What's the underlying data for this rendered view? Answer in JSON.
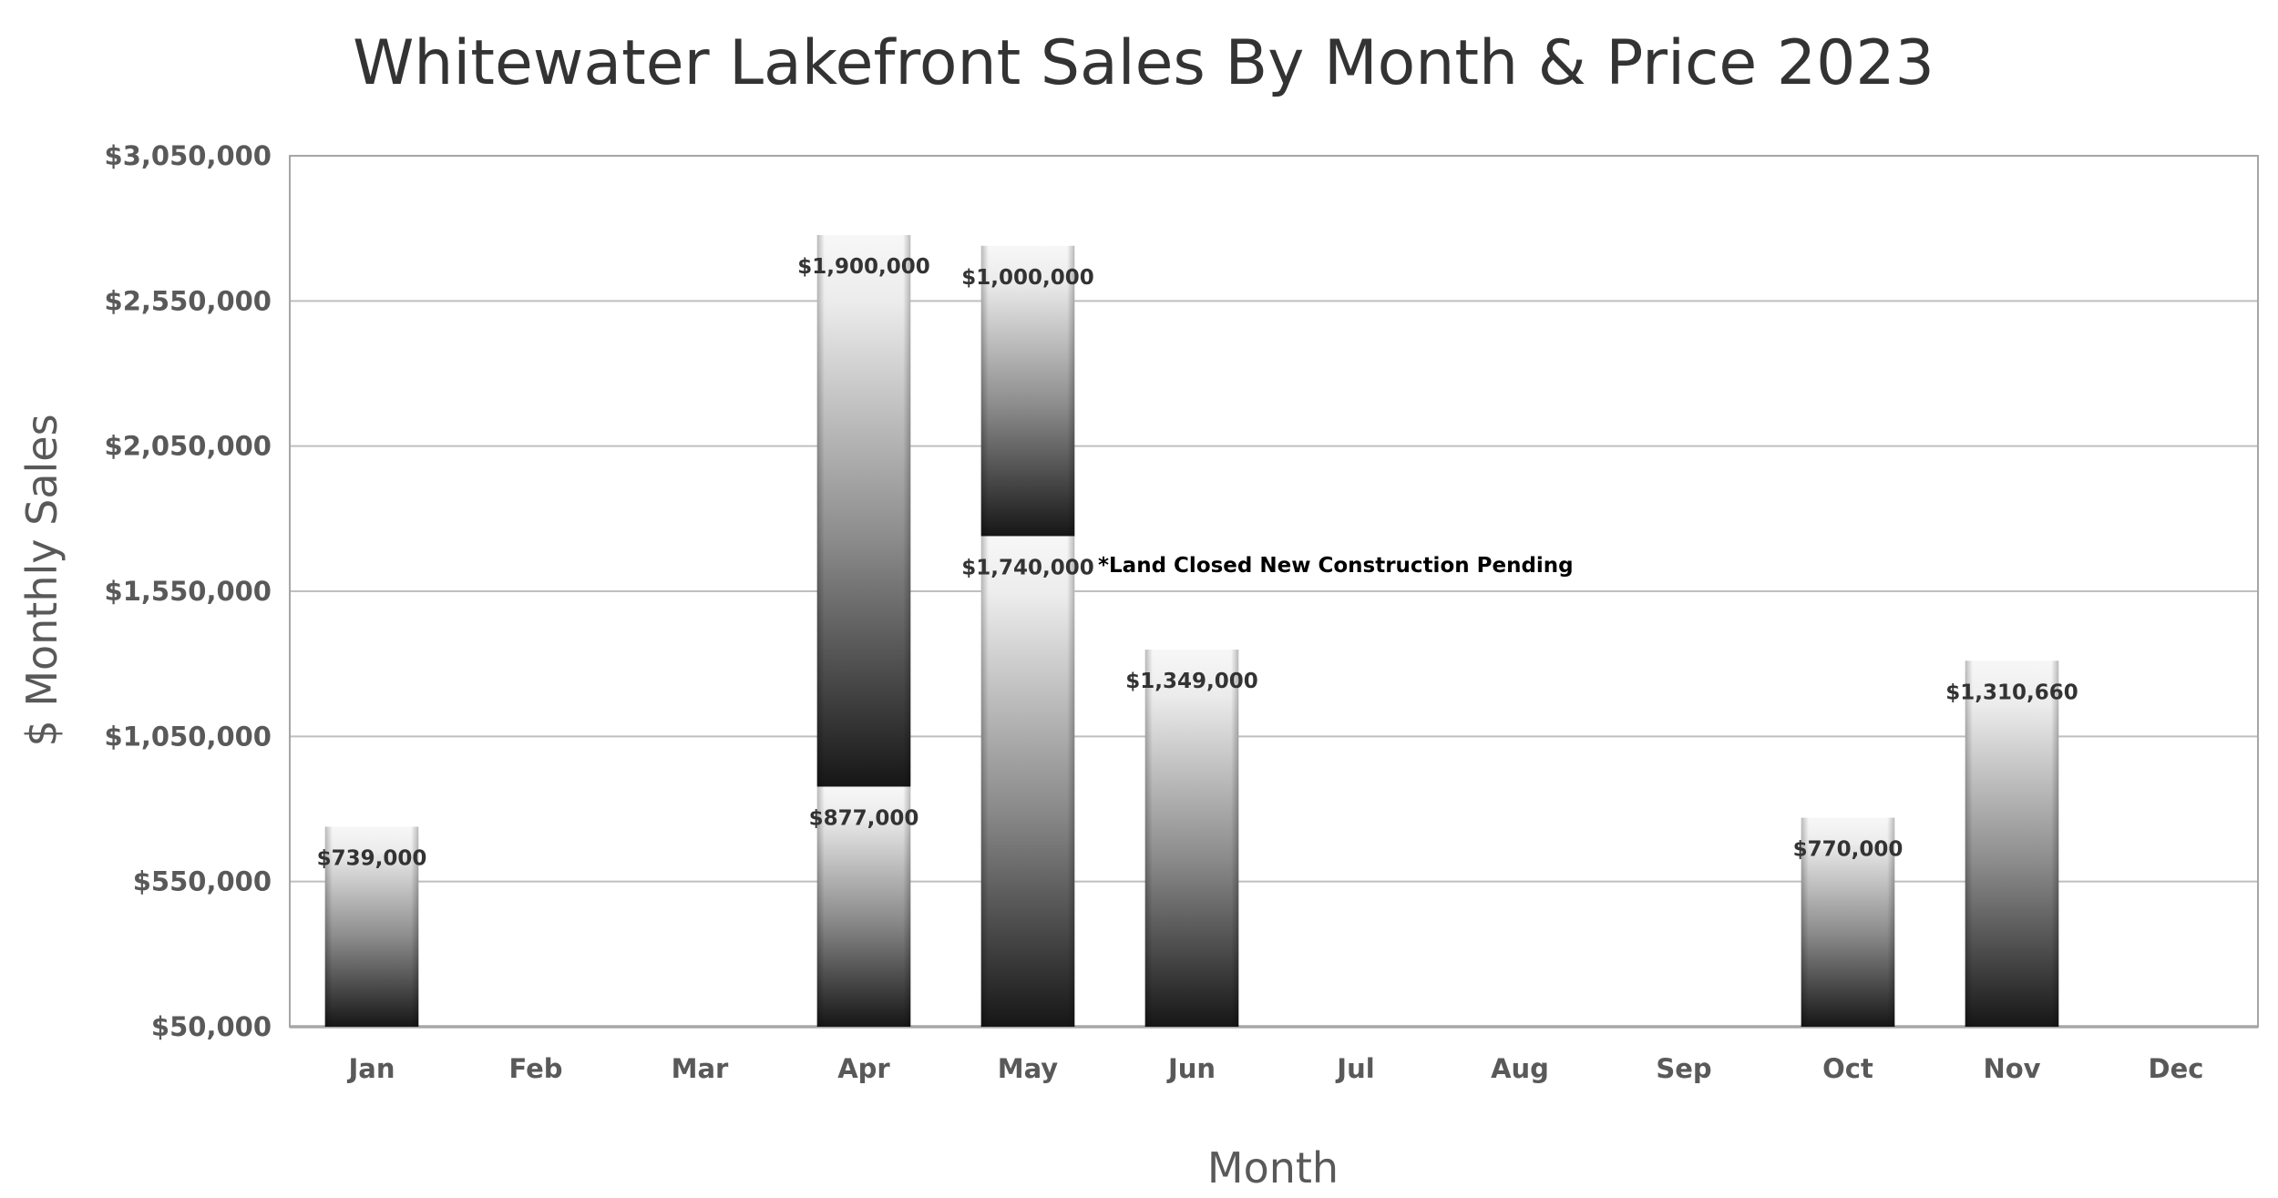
{
  "chart_data": {
    "type": "bar",
    "stacked": true,
    "title": "Whitewater Lakefront Sales By Month & Price 2023",
    "xlabel": "Month",
    "ylabel": "$ Monthly Sales",
    "categories": [
      "Jan",
      "Feb",
      "Mar",
      "Apr",
      "May",
      "Jun",
      "Jul",
      "Aug",
      "Sep",
      "Oct",
      "Nov",
      "Dec"
    ],
    "ylim": [
      50000,
      3050000
    ],
    "yticks": [
      50000,
      550000,
      1050000,
      1550000,
      2050000,
      2550000,
      3050000
    ],
    "ytick_labels": [
      "$50,000",
      "$550,000",
      "$1,050,000",
      "$1,550,000",
      "$2,050,000",
      "$2,550,000",
      "$3,050,000"
    ],
    "grid": true,
    "series": [
      {
        "values": [
          739000,
          null,
          null,
          877000,
          1740000,
          1349000,
          null,
          null,
          null,
          770000,
          1310660,
          null
        ],
        "labels": [
          "$739,000",
          "",
          "",
          "$877,000",
          "$1,740,000",
          "$1,349,000",
          "",
          "",
          "",
          "$770,000",
          "$1,310,660",
          ""
        ]
      },
      {
        "values": [
          null,
          null,
          null,
          1900000,
          1000000,
          null,
          null,
          null,
          null,
          null,
          null,
          null
        ],
        "labels": [
          "",
          "",
          "",
          "$1,900,000",
          "$1,000,000",
          "",
          "",
          "",
          "",
          "",
          "",
          ""
        ]
      }
    ],
    "annotation": "*Land Closed New Construction Pending",
    "colors": {
      "bar_dark": "#1a1a1a",
      "bar_light": "#f7f7f7",
      "grid": "#bfbfbf",
      "axis": "#7f7f7f"
    }
  }
}
